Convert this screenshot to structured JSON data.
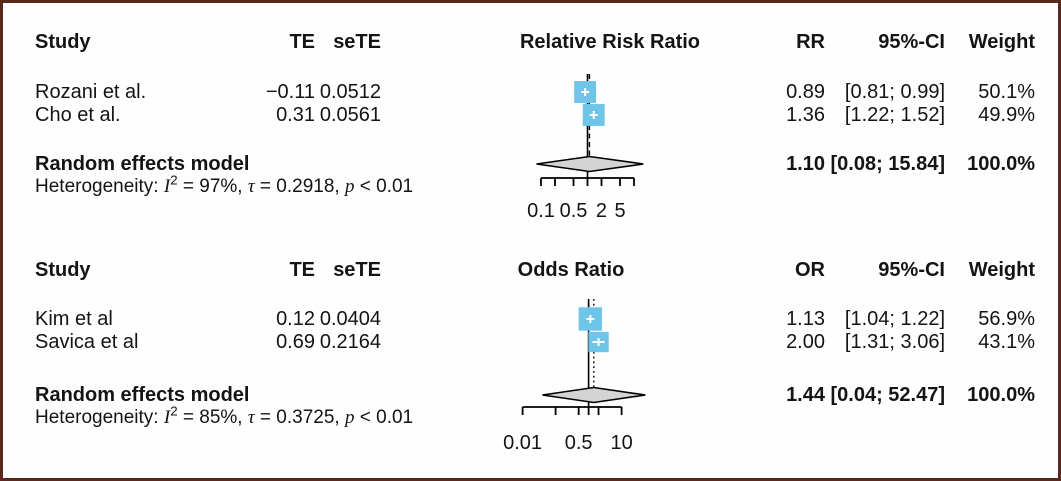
{
  "frame": {
    "background": "#fefefe",
    "border_color": "#5b2820"
  },
  "colors": {
    "square_fill": "#6fc5e7",
    "square_marker": "#ffffff",
    "diamond_fill": "#d4d4d4",
    "line_color": "#000000"
  },
  "panels": [
    {
      "headers": {
        "study": "Study",
        "te": "TE",
        "sete": "seTE",
        "plot": "Relative Risk Ratio",
        "effect": "RR",
        "ci": "95%-CI",
        "weight": "Weight"
      },
      "rows": [
        {
          "study": "Rozani et al.",
          "te": "−0.11",
          "sete": "0.0512",
          "effect": "0.89",
          "ci": "[0.81; 0.99]",
          "weight": "50.1%"
        },
        {
          "study": "Cho et al.",
          "te": "0.31",
          "sete": "0.0561",
          "effect": "1.36",
          "ci": "[1.22; 1.52]",
          "weight": "49.9%"
        }
      ],
      "summary": {
        "label": "Random effects model",
        "effect": "1.10",
        "ci": "[0.08; 15.84]",
        "weight": "100.0%"
      },
      "het": {
        "s1": "Heterogeneity: ",
        "i": "I",
        "sup": "2",
        "s2": " = 97%, ",
        "tau": "τ",
        "s3": " = 0.2918, ",
        "p": "p",
        "s4": " < 0.01"
      }
    },
    {
      "headers": {
        "study": "Study",
        "te": "TE",
        "sete": "seTE",
        "plot": "Odds Ratio",
        "effect": "OR",
        "ci": "95%-CI",
        "weight": "Weight"
      },
      "rows": [
        {
          "study": "Kim et al",
          "te": "0.12",
          "sete": "0.0404",
          "effect": "1.13",
          "ci": "[1.04; 1.22]",
          "weight": "56.9%"
        },
        {
          "study": "Savica et al",
          "te": "0.69",
          "sete": "0.2164",
          "effect": "2.00",
          "ci": "[1.31; 3.06]",
          "weight": "43.1%"
        }
      ],
      "summary": {
        "label": "Random effects model",
        "effect": "1.44",
        "ci": "[0.04; 52.47]",
        "weight": "100.0%"
      },
      "het": {
        "s1": "Heterogeneity: ",
        "i": "I",
        "sup": "2",
        "s2": " = 85%, ",
        "tau": "τ",
        "s3": " = 0.3725, ",
        "p": "p",
        "s4": " < 0.01"
      }
    }
  ],
  "chart_data": [
    {
      "type": "forest",
      "title": "Relative Risk Ratio",
      "scale": "log",
      "effect_measure": "RR",
      "ref_line": 1,
      "studies": [
        {
          "label": "Rozani et al.",
          "TE": -0.11,
          "seTE": 0.0512,
          "effect": 0.89,
          "ci_low": 0.81,
          "ci_high": 0.99,
          "weight_pct": 50.1
        },
        {
          "label": "Cho et al.",
          "TE": 0.31,
          "seTE": 0.0561,
          "effect": 1.36,
          "ci_low": 1.22,
          "ci_high": 1.52,
          "weight_pct": 49.9
        }
      ],
      "summary": {
        "label": "Random effects model",
        "effect": 1.1,
        "ci_low": 0.08,
        "ci_high": 15.84,
        "weight_pct": 100.0
      },
      "heterogeneity": {
        "I2": "97%",
        "tau": 0.2918,
        "p": "< 0.01"
      },
      "axis_ticks": [
        0.1,
        0.2,
        0.5,
        1,
        2,
        5,
        10
      ],
      "axis_tick_labels": [
        {
          "value": 0.1,
          "label": "0.1"
        },
        {
          "value": 0.5,
          "label": "0.5"
        },
        {
          "value": 2,
          "label": "2"
        },
        {
          "value": 5,
          "label": "5"
        }
      ]
    },
    {
      "type": "forest",
      "title": "Odds Ratio",
      "scale": "log",
      "effect_measure": "OR",
      "ref_line": 1,
      "studies": [
        {
          "label": "Kim et al",
          "TE": 0.12,
          "seTE": 0.0404,
          "effect": 1.13,
          "ci_low": 1.04,
          "ci_high": 1.22,
          "weight_pct": 56.9
        },
        {
          "label": "Savica et al",
          "TE": 0.69,
          "seTE": 0.2164,
          "effect": 2.0,
          "ci_low": 1.31,
          "ci_high": 3.06,
          "weight_pct": 43.1
        }
      ],
      "summary": {
        "label": "Random effects model",
        "effect": 1.44,
        "ci_low": 0.04,
        "ci_high": 52.47,
        "weight_pct": 100.0
      },
      "heterogeneity": {
        "I2": "85%",
        "tau": 0.3725,
        "p": "< 0.01"
      },
      "axis_ticks": [
        0.01,
        0.1,
        0.5,
        1,
        2,
        10
      ],
      "axis_tick_labels": [
        {
          "value": 0.01,
          "label": "0.01"
        },
        {
          "value": 0.5,
          "label": "0.5"
        },
        {
          "value": 10,
          "label": "10"
        }
      ]
    }
  ]
}
